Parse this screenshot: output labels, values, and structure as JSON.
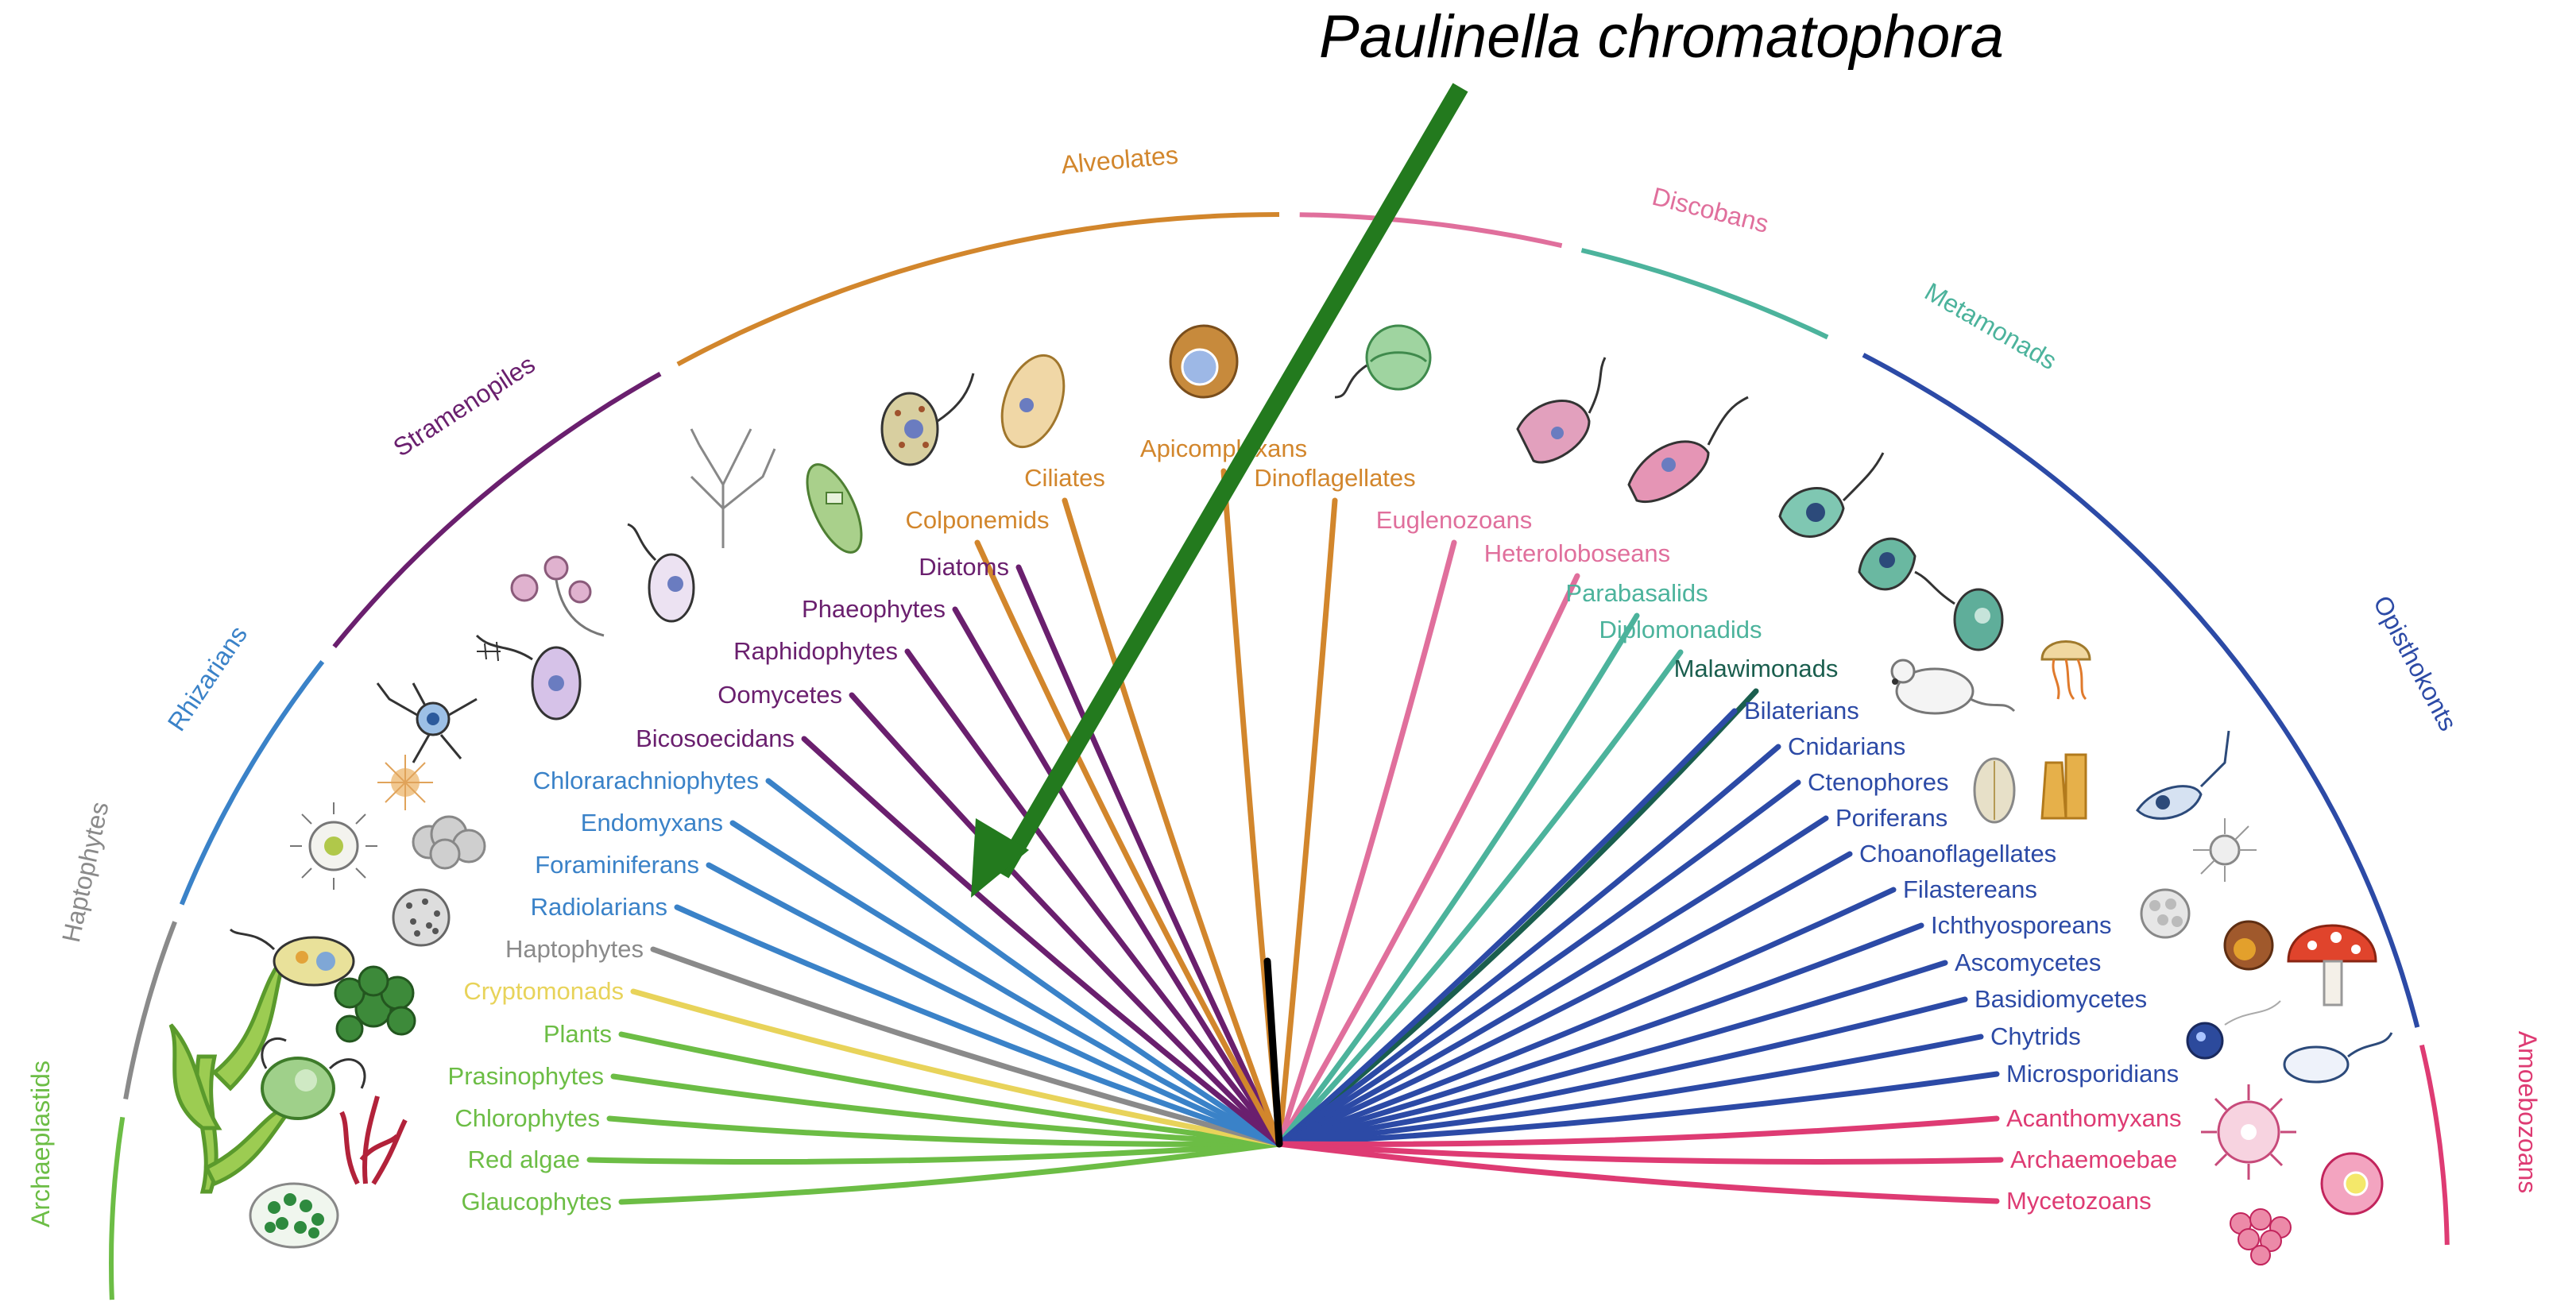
{
  "title": "Paulinella chromatophora",
  "colors": {
    "archaeplastids": "#6cbd45",
    "haptophytes": "#8a8a8a",
    "rhizarians": "#3a82c8",
    "stramenopiles": "#6a1f6e",
    "alveolates": "#d2862c",
    "discobans": "#e06f9c",
    "metamonads": "#4cb39c",
    "malawimonads": "#1a5e4e",
    "opisthokonts": "#2c4aa6",
    "amoebozoans": "#de3b73",
    "cryptomonads": "#e8d35a",
    "root": "#000000",
    "arrow": "#237a1e"
  },
  "groups": [
    {
      "key": "archaeplastids",
      "label": "Archaeplastids"
    },
    {
      "key": "haptophytes",
      "label": "Haptophytes"
    },
    {
      "key": "rhizarians",
      "label": "Rhizarians"
    },
    {
      "key": "stramenopiles",
      "label": "Stramenopiles"
    },
    {
      "key": "alveolates",
      "label": "Alveolates"
    },
    {
      "key": "discobans",
      "label": "Discobans"
    },
    {
      "key": "metamonads",
      "label": "Metamonads"
    },
    {
      "key": "opisthokonts",
      "label": "Opisthokonts"
    },
    {
      "key": "amoebozoans",
      "label": "Amoebozoans"
    }
  ],
  "taxa": {
    "left": [
      {
        "label": "Glaucophytes",
        "group": "archaeplastids"
      },
      {
        "label": "Red algae",
        "group": "archaeplastids"
      },
      {
        "label": "Chlorophytes",
        "group": "archaeplastids"
      },
      {
        "label": "Prasinophytes",
        "group": "archaeplastids"
      },
      {
        "label": "Plants",
        "group": "archaeplastids"
      },
      {
        "label": "Cryptomonads",
        "group": "cryptomonads"
      },
      {
        "label": "Haptophytes",
        "group": "haptophytes"
      },
      {
        "label": "Radiolarians",
        "group": "rhizarians"
      },
      {
        "label": "Foraminiferans",
        "group": "rhizarians"
      },
      {
        "label": "Endomyxans",
        "group": "rhizarians"
      },
      {
        "label": "Chlorarachniophytes",
        "group": "rhizarians"
      },
      {
        "label": "Bicosoecidans",
        "group": "stramenopiles"
      },
      {
        "label": "Oomycetes",
        "group": "stramenopiles"
      },
      {
        "label": "Raphidophytes",
        "group": "stramenopiles"
      },
      {
        "label": "Phaeophytes",
        "group": "stramenopiles"
      },
      {
        "label": "Diatoms",
        "group": "stramenopiles"
      }
    ],
    "top": [
      {
        "label": "Colponemids",
        "group": "alveolates"
      },
      {
        "label": "Ciliates",
        "group": "alveolates"
      },
      {
        "label": "Apicomplexans",
        "group": "alveolates"
      },
      {
        "label": "Dinoflagellates",
        "group": "alveolates"
      },
      {
        "label": "Euglenozoans",
        "group": "discobans"
      },
      {
        "label": "Heteroloboseans",
        "group": "discobans"
      },
      {
        "label": "Parabasalids",
        "group": "metamonads"
      },
      {
        "label": "Diplomonadids",
        "group": "metamonads"
      },
      {
        "label": "Malawimonads",
        "group": "malawimonads"
      }
    ],
    "right": [
      {
        "label": "Bilaterians",
        "group": "opisthokonts"
      },
      {
        "label": "Cnidarians",
        "group": "opisthokonts"
      },
      {
        "label": "Ctenophores",
        "group": "opisthokonts"
      },
      {
        "label": "Poriferans",
        "group": "opisthokonts"
      },
      {
        "label": "Choanoflagellates",
        "group": "opisthokonts"
      },
      {
        "label": "Filastereans",
        "group": "opisthokonts"
      },
      {
        "label": "Ichthyosporeans",
        "group": "opisthokonts"
      },
      {
        "label": "Ascomycetes",
        "group": "opisthokonts"
      },
      {
        "label": "Basidiomycetes",
        "group": "opisthokonts"
      },
      {
        "label": "Chytrids",
        "group": "opisthokonts"
      },
      {
        "label": "Microsporidians",
        "group": "opisthokonts"
      },
      {
        "label": "Acanthomyxans",
        "group": "amoebozoans"
      },
      {
        "label": "Archaemoebae",
        "group": "amoebozoans"
      },
      {
        "label": "Mycetozoans",
        "group": "amoebozoans"
      }
    ]
  }
}
